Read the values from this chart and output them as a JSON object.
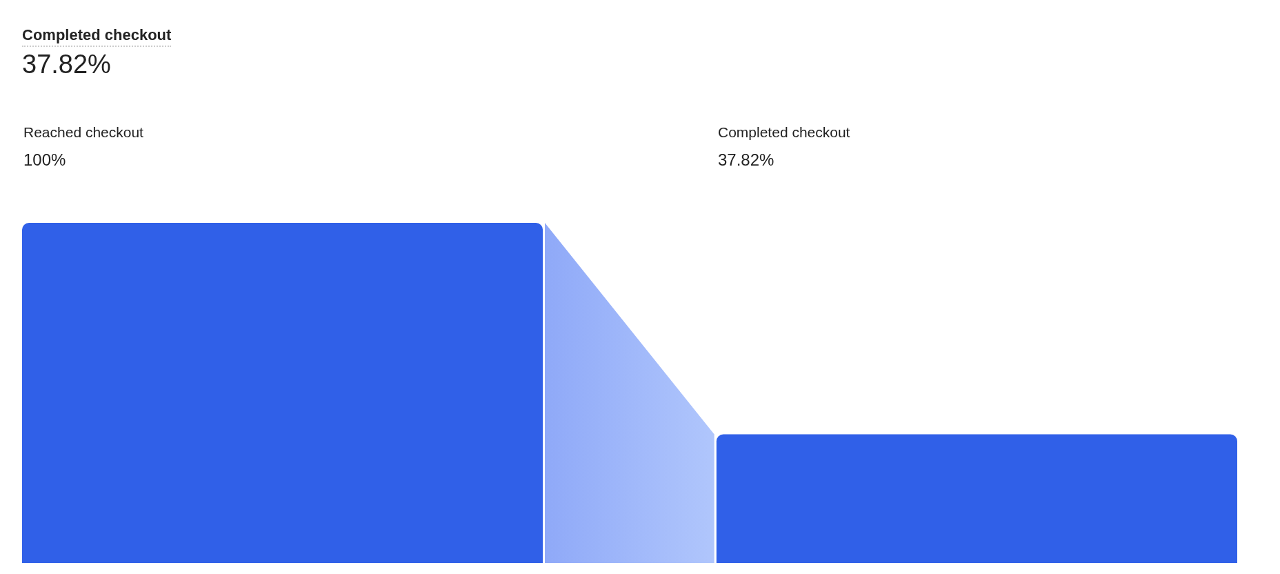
{
  "chart_data": {
    "type": "bar",
    "title": "Completed checkout",
    "subtitle": "37.82%",
    "categories": [
      "Reached checkout",
      "Completed checkout"
    ],
    "values": [
      100,
      37.82
    ],
    "value_labels": [
      "100%",
      "37.82%"
    ],
    "color": "#3060e8"
  }
}
